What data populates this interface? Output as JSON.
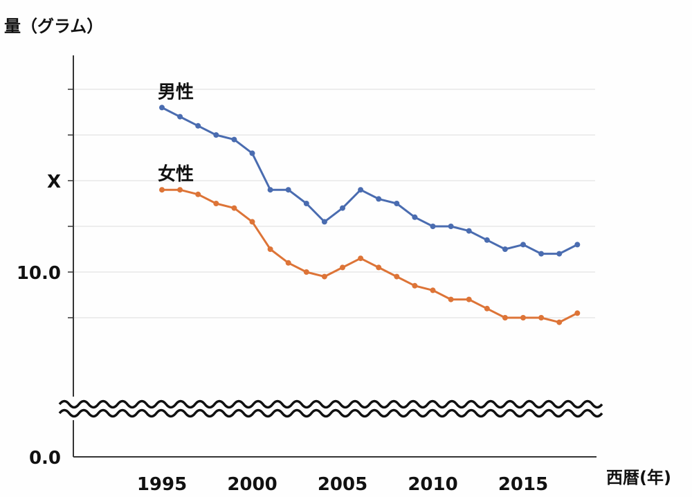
{
  "chart_data": {
    "type": "line",
    "ylabel": "量（グラム）",
    "xlabel": "西暦(年)",
    "x": [
      1995,
      1996,
      1997,
      1998,
      1999,
      2000,
      2001,
      2002,
      2003,
      2004,
      2005,
      2006,
      2007,
      2008,
      2009,
      2010,
      2011,
      2012,
      2013,
      2014,
      2015,
      2016,
      2017,
      2018
    ],
    "xticks": [
      "1995",
      "2000",
      "2005",
      "2010",
      "2015"
    ],
    "yticks": [
      {
        "label": "0.0",
        "value": 0
      },
      {
        "label": "10.0",
        "value": 10
      },
      {
        "label": "X",
        "value": 15
      }
    ],
    "axis_break": "wavy line between 0.0 and 10.0",
    "ylim": [
      5,
      20.2
    ],
    "grid": true,
    "series": [
      {
        "name": "男性",
        "color": "#4a6cb0",
        "values": [
          19.0,
          18.5,
          18.0,
          17.5,
          17.25,
          16.5,
          14.5,
          14.5,
          13.75,
          12.75,
          13.5,
          14.5,
          14.0,
          13.75,
          13.0,
          12.5,
          12.5,
          12.25,
          11.75,
          11.25,
          11.5,
          11.0,
          11.0,
          11.5
        ]
      },
      {
        "name": "女性",
        "color": "#dd7437",
        "values": [
          14.5,
          14.5,
          14.25,
          13.75,
          13.5,
          12.75,
          11.25,
          10.5,
          10.0,
          9.75,
          10.25,
          10.75,
          10.25,
          9.75,
          9.25,
          9.0,
          8.5,
          8.5,
          8.0,
          7.5,
          7.5,
          7.5,
          7.25,
          7.75
        ]
      }
    ]
  }
}
